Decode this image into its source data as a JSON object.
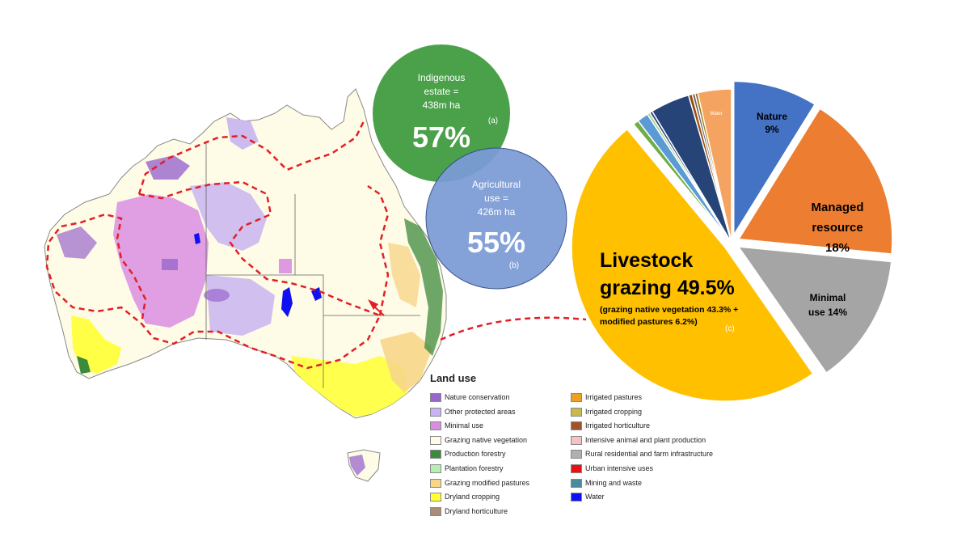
{
  "circles": {
    "indigenous": {
      "label": "Indigenous estate = 438m ha",
      "percent": "57%",
      "note": "(a)",
      "color": "#3c9a3c"
    },
    "agricultural": {
      "label": "Agricultural use = 426m ha",
      "percent": "55%",
      "note": "(b)",
      "color": "#7b9bd6"
    }
  },
  "pie": {
    "note": "(c)",
    "slices_labels": {
      "nature": [
        "Nature",
        "9%"
      ],
      "managed": [
        "Managed",
        "resource",
        "18%"
      ],
      "minimal": [
        "Minimal",
        "use 14%"
      ],
      "livestock_main": [
        "Livestock",
        "grazing 49.5%"
      ],
      "livestock_sub": [
        "(grazing native vegetation 43.3% +",
        "modified pastures 6.2%)"
      ],
      "water": "Water"
    }
  },
  "chart_data": {
    "type": "pie",
    "title": "",
    "slices": [
      {
        "label": "Nature 9%",
        "value": 9,
        "color": "#4472c4"
      },
      {
        "label": "Managed resource 18%",
        "value": 18,
        "color": "#ed7d31"
      },
      {
        "label": "Minimal use 14%",
        "value": 14,
        "color": "#a5a5a5"
      },
      {
        "label": "Livestock grazing 49.5%",
        "value": 49.5,
        "color": "#ffc000"
      },
      {
        "label": "",
        "value": 0.6,
        "color": "#70ad47"
      },
      {
        "label": "",
        "value": 1.2,
        "color": "#5b9bd5"
      },
      {
        "label": "",
        "value": 0.3,
        "color": "#a9d18e"
      },
      {
        "label": "",
        "value": 0.3,
        "color": "#264478"
      },
      {
        "label": "",
        "value": 4.2,
        "color": "#264478"
      },
      {
        "label": "",
        "value": 0.4,
        "color": "#9e480e"
      },
      {
        "label": "",
        "value": 0.3,
        "color": "#636363"
      },
      {
        "label": "",
        "value": 0.3,
        "color": "#997300"
      },
      {
        "label": "Water",
        "value": 3.6,
        "color": "#f4a460"
      }
    ]
  },
  "legend": {
    "title": "Land use",
    "items": [
      {
        "label": "Nature conservation",
        "color": "#9966cc"
      },
      {
        "label": "Other protected areas",
        "color": "#c8b4f0"
      },
      {
        "label": "Minimal use",
        "color": "#d98ee0"
      },
      {
        "label": "Grazing native vegetation",
        "color": "#fefbe6"
      },
      {
        "label": "Production forestry",
        "color": "#3c8a3c"
      },
      {
        "label": "Plantation forestry",
        "color": "#b6f0b0"
      },
      {
        "label": "Grazing modified pastures",
        "color": "#f7d68a"
      },
      {
        "label": "Dryland cropping",
        "color": "#ffff33"
      },
      {
        "label": "Dryland horticulture",
        "color": "#a98c7a"
      },
      {
        "label": "Irrigated pastures",
        "color": "#f0a020"
      },
      {
        "label": "Irrigated cropping",
        "color": "#c8b850"
      },
      {
        "label": "Irrigated horticulture",
        "color": "#a0522d"
      },
      {
        "label": "Intensive animal and plant production",
        "color": "#f4c2c2"
      },
      {
        "label": "Rural residential and farm infrastructure",
        "color": "#b0b0b0"
      },
      {
        "label": "Urban intensive uses",
        "color": "#e81010"
      },
      {
        "label": "Mining and waste",
        "color": "#4a8a9a"
      },
      {
        "label": "Water",
        "color": "#1010f0"
      }
    ]
  }
}
